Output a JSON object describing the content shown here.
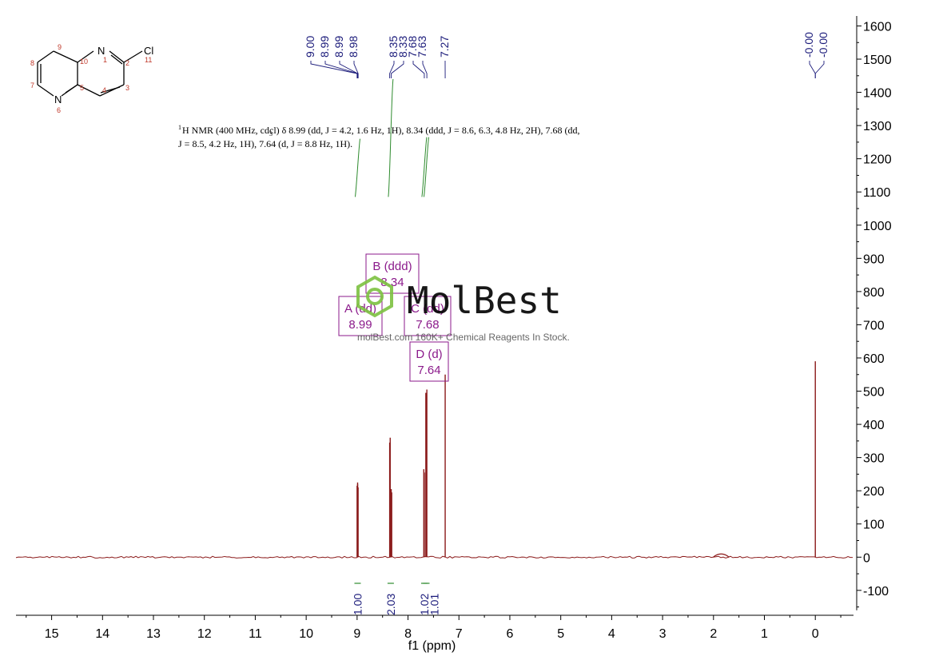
{
  "chart_data": {
    "type": "line",
    "title": "",
    "xlabel": "f1 (ppm)",
    "ylabel": "",
    "x_reversed": true,
    "xlim": [
      15.7,
      -0.75
    ],
    "ylim": [
      -175,
      1630
    ],
    "x_ticks": [
      "15",
      "14",
      "13",
      "12",
      "11",
      "10",
      "9",
      "8",
      "7",
      "6",
      "5",
      "4",
      "3",
      "2",
      "1",
      "0"
    ],
    "y_ticks": [
      "1600",
      "1500",
      "1400",
      "1300",
      "1200",
      "1100",
      "1000",
      "900",
      "800",
      "700",
      "600",
      "500",
      "400",
      "300",
      "200",
      "100",
      "0",
      "-100"
    ],
    "grid": false,
    "spectrum_color": "#8b1a1a",
    "integral_color": "#2e8b2e",
    "label_color": "#1a1a7a",
    "multiplet_color": "#8b1a8b",
    "peaks": [
      {
        "ppm": 9.0,
        "height": 215
      },
      {
        "ppm": 8.99,
        "height": 225
      },
      {
        "ppm": 8.99,
        "height": 220
      },
      {
        "ppm": 8.98,
        "height": 210
      },
      {
        "ppm": 8.36,
        "height": 345
      },
      {
        "ppm": 8.35,
        "height": 360
      },
      {
        "ppm": 8.33,
        "height": 205
      },
      {
        "ppm": 8.32,
        "height": 195
      },
      {
        "ppm": 7.69,
        "height": 265
      },
      {
        "ppm": 7.68,
        "height": 255
      },
      {
        "ppm": 7.65,
        "height": 495
      },
      {
        "ppm": 7.63,
        "height": 505
      },
      {
        "ppm": 7.27,
        "height": 550
      },
      {
        "ppm": 0.0,
        "height": 590
      }
    ],
    "peak_labels": {
      "group1": [
        "9.00",
        "8.99",
        "8.99",
        "8.98"
      ],
      "group2": [
        "8.35",
        "8.33",
        "7.68",
        "7.63"
      ],
      "single1": "7.27",
      "group3": [
        "-0.00",
        "-0.00"
      ]
    },
    "integrals": [
      {
        "ppm": 8.99,
        "value": "1.00"
      },
      {
        "ppm": 8.34,
        "value": "2.03"
      },
      {
        "ppm": 7.68,
        "value": "1.02"
      },
      {
        "ppm": 7.64,
        "value": "1.01"
      }
    ],
    "multiplets": [
      {
        "label": "A (dd)",
        "shift": "8.99"
      },
      {
        "label": "B (ddd)",
        "shift": "8.34"
      },
      {
        "label": "C (dd)",
        "shift": "7.68"
      },
      {
        "label": "D (d)",
        "shift": "7.64"
      }
    ],
    "annotation_line1": "H NMR (400 MHz, cdcl) δ 8.99 (dd, J = 4.2, 1.6 Hz, 1H), 8.34 (ddd, J = 8.6, 6.3, 4.8 Hz, 2H), 7.68 (dd,",
    "annotation_line2": "J = 8.5, 4.2 Hz, 1H), 7.64 (d, J = 8.8 Hz, 1H).",
    "annotation_sup1": "1",
    "annotation_sub3": "3"
  },
  "molecule": {
    "labels": {
      "n1": "N",
      "n6": "N",
      "cl": "Cl"
    },
    "atom_numbers": [
      "1",
      "2",
      "3",
      "4",
      "5",
      "6",
      "7",
      "8",
      "9",
      "10",
      "11"
    ]
  },
  "watermark": {
    "brand": "MolBest",
    "tagline": "molBest.com 160K+ Chemical Reagents In Stock."
  }
}
